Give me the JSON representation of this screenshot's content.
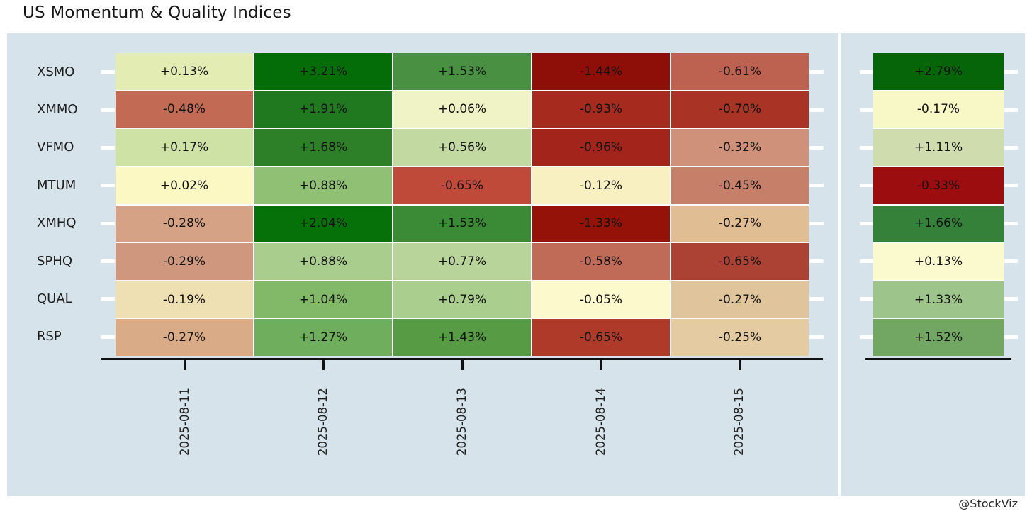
{
  "title": "US Momentum & Quality Indices",
  "attribution": "@StockViz",
  "colors": {
    "panel_background": "#d7e3ea",
    "panel_seam": "#e2eaef",
    "axis": "#111111",
    "cell_text": "#111111",
    "tick_dash": "#ffffff",
    "strong_positive": "#046d08",
    "strong_negative": "#8e0f08",
    "neutral": "#fbf8c3"
  },
  "chart_data": {
    "type": "heatmap",
    "title": "US Momentum & Quality Indices",
    "colormap": "red-yellow-green",
    "legend": false,
    "value_unit": "percent daily change",
    "rows": [
      "XSMO",
      "XMMO",
      "VFMO",
      "MTUM",
      "XMHQ",
      "SPHQ",
      "QUAL",
      "RSP"
    ],
    "columns": [
      "2025-08-11",
      "2025-08-12",
      "2025-08-13",
      "2025-08-14",
      "2025-08-15"
    ],
    "values": [
      [
        0.13,
        3.21,
        1.53,
        -1.44,
        -0.61
      ],
      [
        -0.48,
        1.91,
        0.06,
        -0.93,
        -0.7
      ],
      [
        0.17,
        1.68,
        0.56,
        -0.96,
        -0.32
      ],
      [
        0.02,
        0.88,
        -0.65,
        -0.12,
        -0.45
      ],
      [
        -0.28,
        2.04,
        1.53,
        -1.33,
        -0.27
      ],
      [
        -0.29,
        0.88,
        0.77,
        -0.58,
        -0.65
      ],
      [
        -0.19,
        1.04,
        0.79,
        -0.05,
        -0.27
      ],
      [
        -0.27,
        1.27,
        1.43,
        -0.65,
        -0.25
      ]
    ],
    "cell_labels": [
      [
        "+0.13%",
        "+3.21%",
        "+1.53%",
        "-1.44%",
        "-0.61%"
      ],
      [
        "-0.48%",
        "+1.91%",
        "+0.06%",
        "-0.93%",
        "-0.70%"
      ],
      [
        "+0.17%",
        "+1.68%",
        "+0.56%",
        "-0.96%",
        "-0.32%"
      ],
      [
        "+0.02%",
        "+0.88%",
        "-0.65%",
        "-0.12%",
        "-0.45%"
      ],
      [
        "-0.28%",
        "+2.04%",
        "+1.53%",
        "-1.33%",
        "-0.27%"
      ],
      [
        "-0.29%",
        "+0.88%",
        "+0.77%",
        "-0.58%",
        "-0.65%"
      ],
      [
        "-0.19%",
        "+1.04%",
        "+0.79%",
        "-0.05%",
        "-0.27%"
      ],
      [
        "-0.27%",
        "+1.27%",
        "+1.43%",
        "-0.65%",
        "-0.25%"
      ]
    ],
    "cell_colors": [
      [
        "#e3ecb2",
        "#046d08",
        "#4a9042",
        "#8e0f08",
        "#bd6150"
      ],
      [
        "#c26a54",
        "#20791f",
        "#f0f3c6",
        "#a62a1e",
        "#a93425"
      ],
      [
        "#cfe2a5",
        "#2e8028",
        "#c3d9a2",
        "#a3241a",
        "#cf9179"
      ],
      [
        "#fbf8c3",
        "#90c073",
        "#bf4a3a",
        "#f8f0c0",
        "#c67f69"
      ],
      [
        "#d5a285",
        "#077109",
        "#3a8a36",
        "#941208",
        "#e0bd93"
      ],
      [
        "#cf977e",
        "#a8cd8c",
        "#b8d49a",
        "#c06b58",
        "#ab4234"
      ],
      [
        "#efe0b4",
        "#81b968",
        "#aace8d",
        "#fcf9cd",
        "#e0c49b"
      ],
      [
        "#d9ab87",
        "#6fae5c",
        "#579b45",
        "#b03a2a",
        "#e4cba1"
      ]
    ],
    "summary_column": {
      "values": [
        2.79,
        -0.17,
        1.11,
        -0.33,
        1.66,
        0.13,
        1.33,
        1.52
      ],
      "labels": [
        "+2.79%",
        "-0.17%",
        "+1.11%",
        "-0.33%",
        "+1.66%",
        "+0.13%",
        "+1.33%",
        "+1.52%"
      ],
      "colors": [
        "#066409",
        "#f8f7c6",
        "#cedcae",
        "#9c0d10",
        "#35813a",
        "#fbf9ce",
        "#9dc48b",
        "#72a763"
      ]
    }
  }
}
